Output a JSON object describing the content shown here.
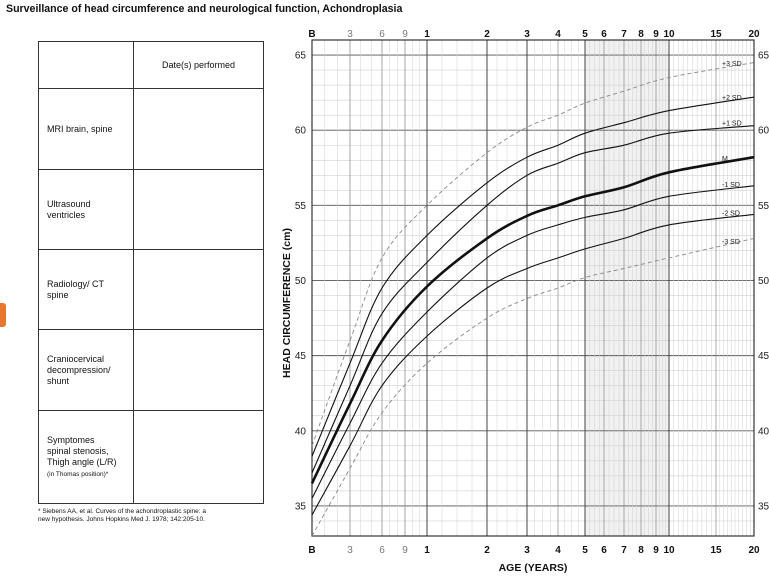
{
  "title": "Surveillance of head circumference and neurological function, Achondroplasia",
  "table": {
    "header": "Date(s) performed",
    "rows": [
      {
        "lines": [
          "MRI brain, spine"
        ]
      },
      {
        "lines": [
          "Ultrasound",
          "ventricles"
        ]
      },
      {
        "lines": [
          "Radiology/ CT",
          "spine"
        ]
      },
      {
        "lines": [
          "Craniocervical",
          "decompression/",
          "shunt"
        ]
      },
      {
        "lines": [
          "Symptomes",
          "spinal stenosis,",
          "Thigh angle (L/R)"
        ],
        "small": "(in Thomas position)*"
      }
    ]
  },
  "footnote": [
    "* Siebens AA, et al. Curves of the achondroplastic spine: a",
    "new hypothesis. Johns Hopkins Med J. 1978; 142:205-10."
  ],
  "chart_data": {
    "type": "line",
    "xlabel": "AGE (YEARS)",
    "ylabel": "HEAD CIRCUMFERENCE (cm)",
    "x_scale": "age axis: birth (B), months 3-9, then years 1-20 (log-like)",
    "x_ticks": [
      "B",
      "3",
      "6",
      "9",
      "1",
      "2",
      "3",
      "4",
      "5",
      "6",
      "7",
      "8",
      "9",
      "10",
      "15",
      "20"
    ],
    "x_tick_units": [
      "birth",
      "months",
      "months",
      "months",
      "years",
      "years",
      "years",
      "years",
      "years",
      "years",
      "years",
      "years",
      "years",
      "years",
      "years",
      "years"
    ],
    "ylim": [
      33,
      66
    ],
    "y_ticks": [
      35,
      40,
      45,
      50,
      55,
      60,
      65
    ],
    "grid": true,
    "series": [
      {
        "name": "+3 SD",
        "dashed": true,
        "values": [
          39.0,
          46.0,
          51.5,
          55.0,
          58.5,
          60.2,
          61.0,
          61.8,
          62.6,
          63.5,
          64.5
        ]
      },
      {
        "name": "+2 SD",
        "dashed": false,
        "values": [
          38.3,
          44.5,
          49.5,
          53.0,
          56.5,
          58.2,
          59.0,
          59.8,
          60.5,
          61.3,
          62.2
        ]
      },
      {
        "name": "+1 SD",
        "dashed": false,
        "values": [
          37.2,
          43.0,
          47.8,
          51.2,
          55.0,
          57.0,
          57.8,
          58.5,
          59.0,
          59.8,
          60.3
        ]
      },
      {
        "name": "M",
        "dashed": false,
        "bold": true,
        "values": [
          36.5,
          41.8,
          46.0,
          49.6,
          52.8,
          54.3,
          55.0,
          55.6,
          56.2,
          57.2,
          58.2
        ]
      },
      {
        "name": "-1 SD",
        "dashed": false,
        "values": [
          35.5,
          40.5,
          44.5,
          47.9,
          51.5,
          53.0,
          53.7,
          54.2,
          54.7,
          55.6,
          56.3
        ]
      },
      {
        "name": "-2 SD",
        "dashed": false,
        "values": [
          34.4,
          39.0,
          43.0,
          46.3,
          49.5,
          50.8,
          51.5,
          52.1,
          52.8,
          53.7,
          54.4
        ]
      },
      {
        "name": "-3 SD",
        "dashed": true,
        "values": [
          33.0,
          37.5,
          41.2,
          44.5,
          47.5,
          48.8,
          49.5,
          50.2,
          50.8,
          51.5,
          52.8
        ]
      }
    ],
    "age_years": [
      0,
      0.25,
      0.5,
      1,
      2,
      3,
      4,
      5,
      7,
      10,
      20
    ]
  }
}
